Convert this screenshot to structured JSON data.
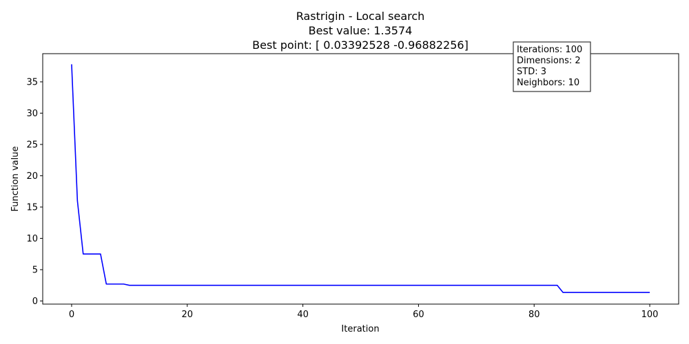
{
  "chart_data": {
    "type": "line",
    "title_lines": [
      "Rastrigin - Local search",
      "Best value: 1.3574",
      "Best point: [ 0.03392528 -0.96882256]"
    ],
    "xlabel": "Iteration",
    "ylabel": "Function value",
    "xlim": [
      -5,
      105
    ],
    "ylim": [
      -0.5,
      39.5
    ],
    "xticks": [
      0,
      20,
      40,
      60,
      80,
      100
    ],
    "yticks": [
      0,
      5,
      10,
      15,
      20,
      25,
      30,
      35
    ],
    "grid": false,
    "series": [
      {
        "color": "#0000ff",
        "x": [
          0,
          1,
          2,
          3,
          4,
          5,
          6,
          7,
          8,
          9,
          10,
          11,
          12,
          13,
          14,
          15,
          16,
          17,
          18,
          19,
          20,
          21,
          22,
          23,
          24,
          25,
          26,
          27,
          28,
          29,
          30,
          31,
          32,
          33,
          34,
          35,
          36,
          37,
          38,
          39,
          40,
          41,
          42,
          43,
          44,
          45,
          46,
          47,
          48,
          49,
          50,
          51,
          52,
          53,
          54,
          55,
          56,
          57,
          58,
          59,
          60,
          61,
          62,
          63,
          64,
          65,
          66,
          67,
          68,
          69,
          70,
          71,
          72,
          73,
          74,
          75,
          76,
          77,
          78,
          79,
          80,
          81,
          82,
          83,
          84,
          85,
          86,
          87,
          88,
          89,
          90,
          91,
          92,
          93,
          94,
          95,
          96,
          97,
          98,
          99,
          100
        ],
        "y": [
          37.8,
          16.0,
          7.5,
          7.5,
          7.5,
          7.5,
          2.7,
          2.7,
          2.7,
          2.7,
          2.5,
          2.5,
          2.5,
          2.5,
          2.5,
          2.5,
          2.5,
          2.5,
          2.5,
          2.5,
          2.5,
          2.5,
          2.5,
          2.5,
          2.5,
          2.5,
          2.5,
          2.5,
          2.5,
          2.5,
          2.5,
          2.5,
          2.5,
          2.5,
          2.5,
          2.5,
          2.5,
          2.5,
          2.5,
          2.5,
          2.5,
          2.5,
          2.5,
          2.5,
          2.5,
          2.5,
          2.5,
          2.5,
          2.5,
          2.5,
          2.5,
          2.5,
          2.5,
          2.5,
          2.5,
          2.5,
          2.5,
          2.5,
          2.5,
          2.5,
          2.5,
          2.5,
          2.5,
          2.5,
          2.5,
          2.5,
          2.5,
          2.5,
          2.5,
          2.5,
          2.5,
          2.5,
          2.5,
          2.5,
          2.5,
          2.5,
          2.5,
          2.5,
          2.5,
          2.5,
          2.5,
          2.5,
          2.5,
          2.5,
          2.5,
          1.36,
          1.36,
          1.36,
          1.36,
          1.36,
          1.36,
          1.36,
          1.36,
          1.36,
          1.36,
          1.36,
          1.36,
          1.36,
          1.36,
          1.36,
          1.36
        ]
      }
    ],
    "annotation_box": {
      "lines": [
        "Iterations: 100",
        "Dimensions: 2",
        "STD: 3",
        "Neighbors: 10"
      ]
    }
  }
}
